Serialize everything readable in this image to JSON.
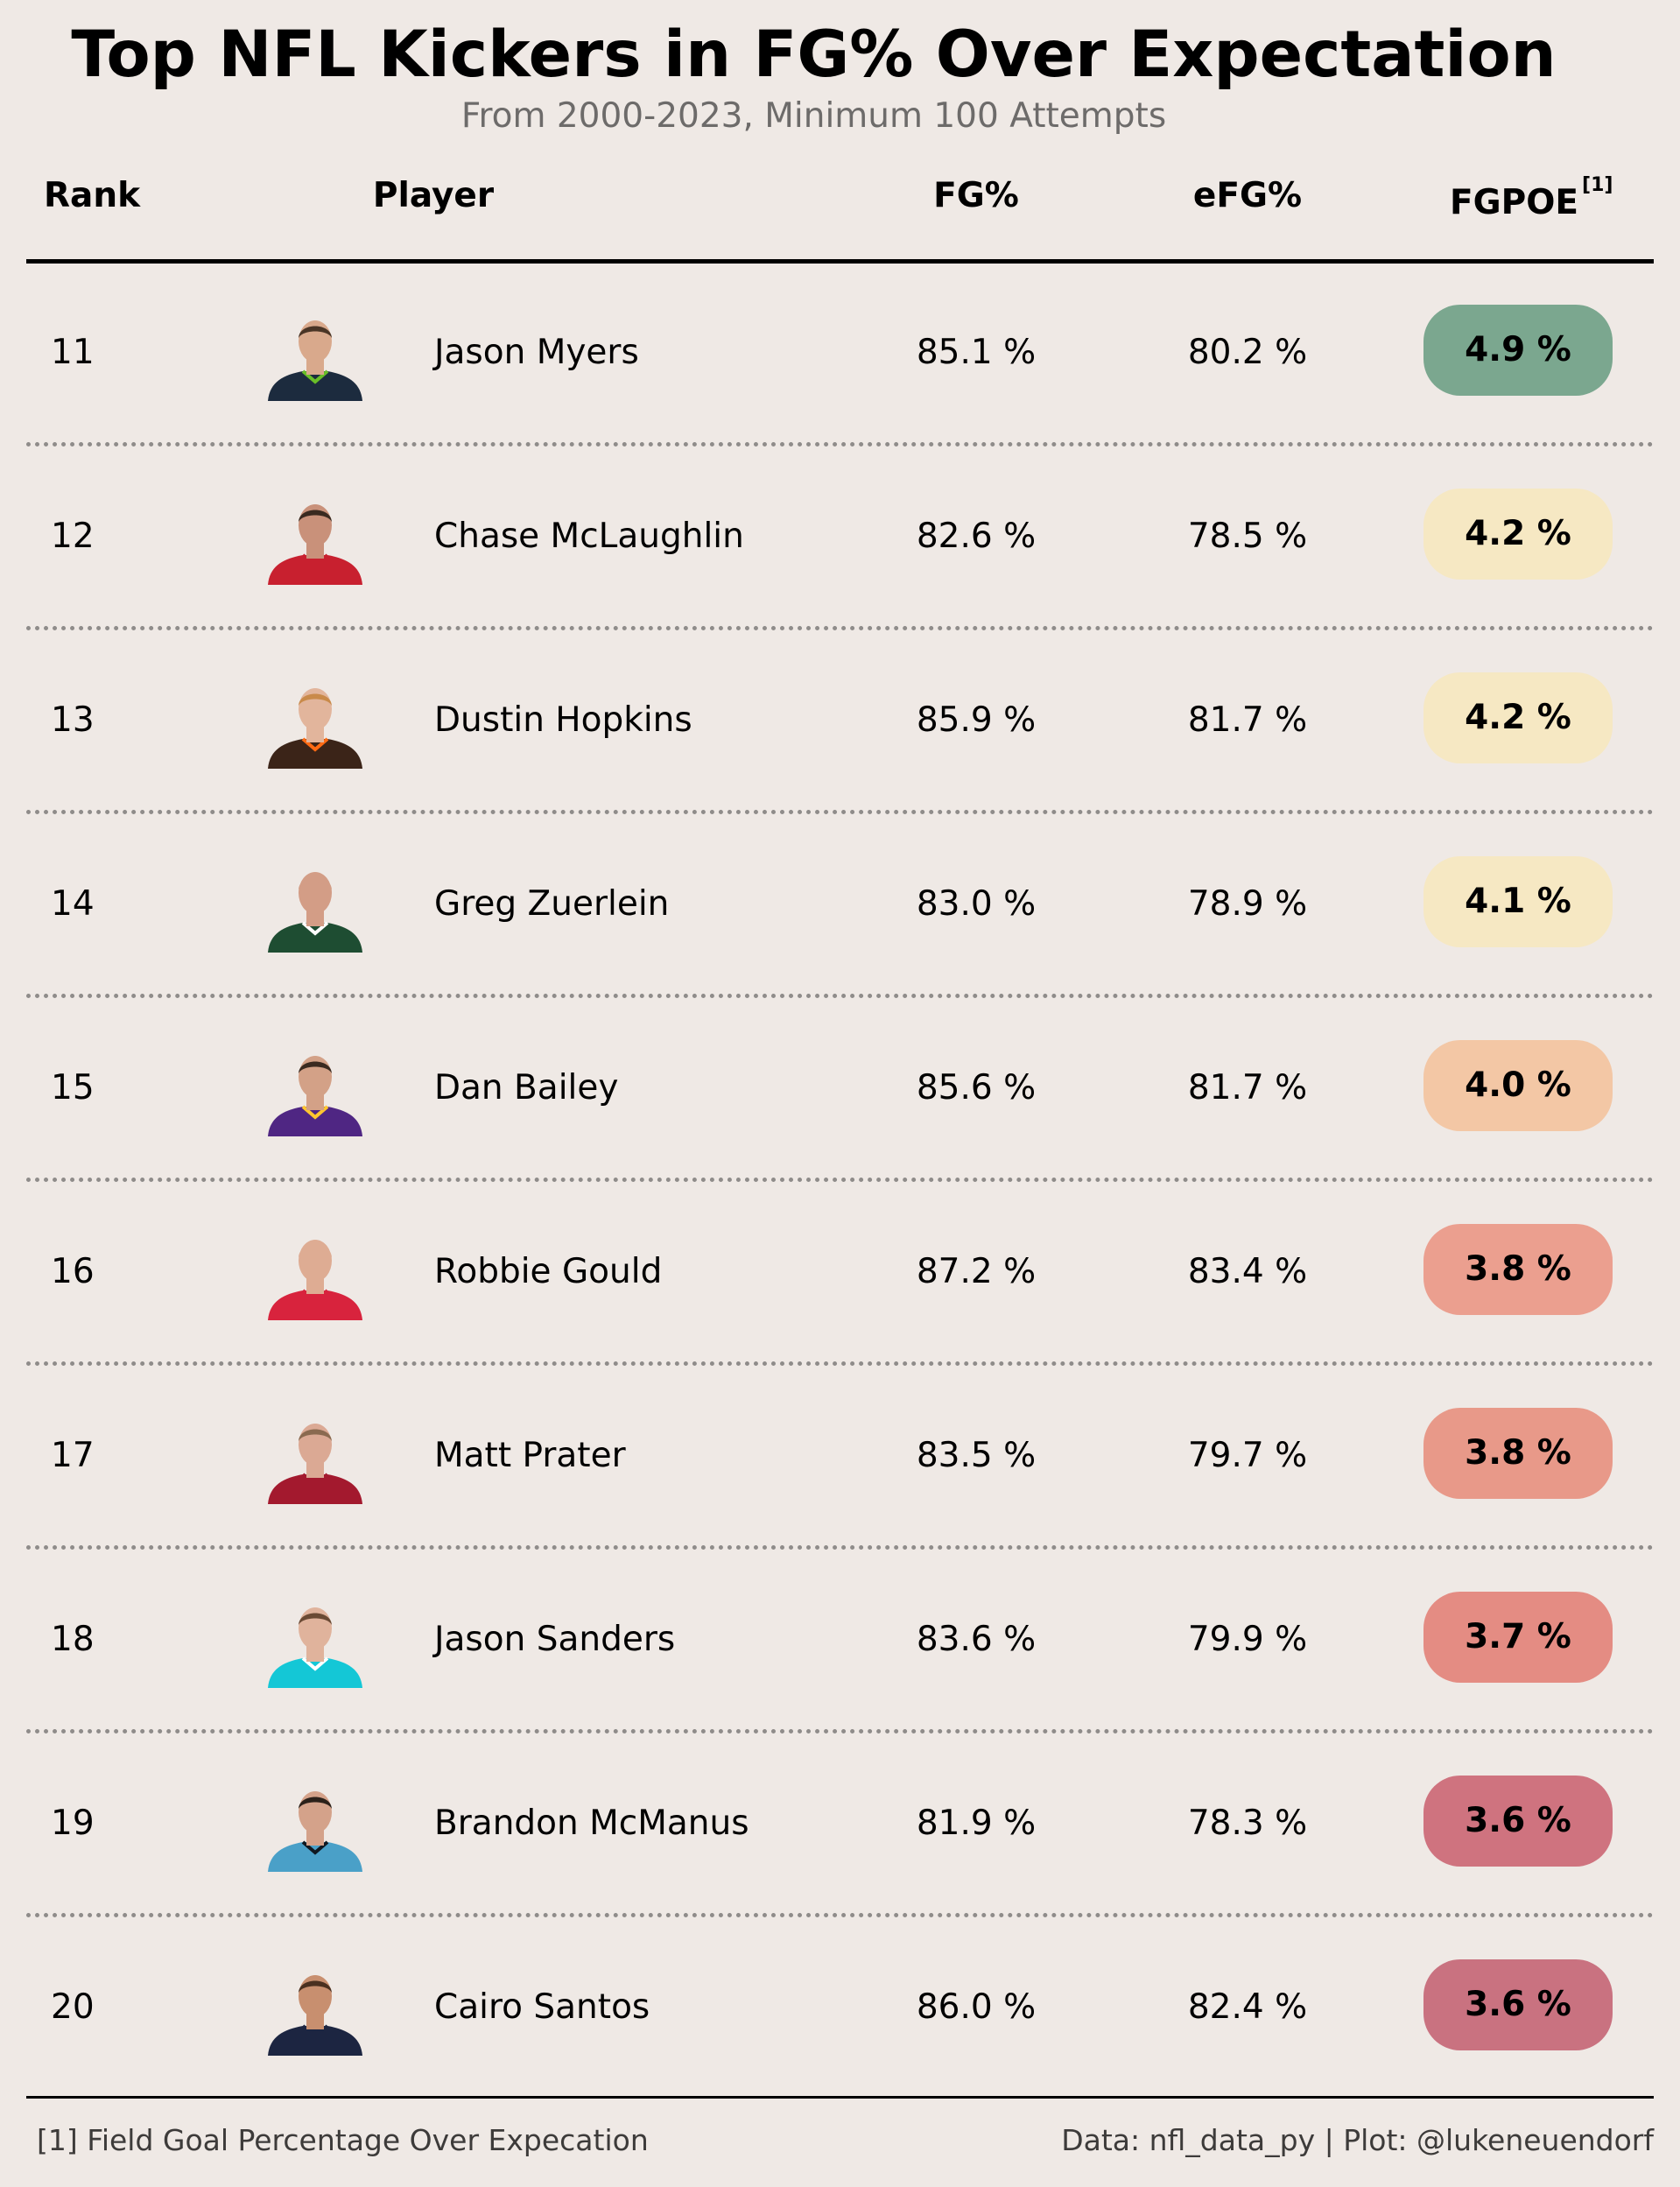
{
  "title": "Top NFL Kickers in FG% Over Expectation",
  "subtitle": "From 2000-2023, Minimum 100 Attempts",
  "columns": {
    "rank": "Rank",
    "player": "Player",
    "fg": "FG%",
    "efg": "eFG%",
    "fgpoe": "FGPOE",
    "fgpoe_note": "[1]"
  },
  "footer": {
    "note": "[1] Field Goal Percentage Over Expecation",
    "credit": "Data: nfl_data_py | Plot: @lukeneuendorf"
  },
  "chart_data": {
    "type": "table",
    "columns": [
      "Rank",
      "Player",
      "FG%",
      "eFG%",
      "FGPOE"
    ],
    "rows": [
      {
        "rank": "11",
        "player": "Jason Myers",
        "fg": "85.1 %",
        "efg": "80.2 %",
        "fgpoe": "4.9 %",
        "fgpoe_value": 4.9,
        "pill_color": "#7ba78f",
        "jersey_color": "#1c2b3e",
        "jersey_accent": "#69be28",
        "skin": "#d9a98c",
        "hair": "#4a3526"
      },
      {
        "rank": "12",
        "player": "Chase McLaughlin",
        "fg": "82.6 %",
        "efg": "78.5 %",
        "fgpoe": "4.2 %",
        "fgpoe_value": 4.2,
        "pill_color": "#f6e8c3",
        "jersey_color": "#c8202f",
        "jersey_accent": "#c8202f",
        "skin": "#c9917a",
        "hair": "#3a2a20"
      },
      {
        "rank": "13",
        "player": "Dustin Hopkins",
        "fg": "85.9 %",
        "efg": "81.7 %",
        "fgpoe": "4.2 %",
        "fgpoe_value": 4.2,
        "pill_color": "#f6e8c3",
        "jersey_color": "#3b2418",
        "jersey_accent": "#ff6a13",
        "skin": "#e2b59c",
        "hair": "#c98a4a"
      },
      {
        "rank": "14",
        "player": "Greg Zuerlein",
        "fg": "83.0 %",
        "efg": "78.9 %",
        "fgpoe": "4.1 %",
        "fgpoe_value": 4.1,
        "pill_color": "#f6e8c3",
        "jersey_color": "#1e4d32",
        "jersey_accent": "#ffffff",
        "skin": "#d39d86",
        "hair": "#d39d86"
      },
      {
        "rank": "15",
        "player": "Dan Bailey",
        "fg": "85.6 %",
        "efg": "81.7 %",
        "fgpoe": "4.0 %",
        "fgpoe_value": 4.0,
        "pill_color": "#f3c7a5",
        "jersey_color": "#4f2683",
        "jersey_accent": "#ffc62f",
        "skin": "#d3a187",
        "hair": "#3a2a20"
      },
      {
        "rank": "16",
        "player": "Robbie Gould",
        "fg": "87.2 %",
        "efg": "83.4 %",
        "fgpoe": "3.8 %",
        "fgpoe_value": 3.8,
        "pill_color": "#eb9f8f",
        "jersey_color": "#d8233d",
        "jersey_accent": "#d8233d",
        "skin": "#deac93",
        "hair": "#deac93"
      },
      {
        "rank": "17",
        "player": "Matt Prater",
        "fg": "83.5 %",
        "efg": "79.7 %",
        "fgpoe": "3.8 %",
        "fgpoe_value": 3.8,
        "pill_color": "#e89989",
        "jersey_color": "#a3192e",
        "jersey_accent": "#a3192e",
        "skin": "#dba994",
        "hair": "#8a6a50"
      },
      {
        "rank": "18",
        "player": "Jason Sanders",
        "fg": "83.6 %",
        "efg": "79.9 %",
        "fgpoe": "3.7 %",
        "fgpoe_value": 3.7,
        "pill_color": "#e48c83",
        "jersey_color": "#14c7d6",
        "jersey_accent": "#ffffff",
        "skin": "#e0b39c",
        "hair": "#6a4a34"
      },
      {
        "rank": "19",
        "player": "Brandon McManus",
        "fg": "81.9 %",
        "efg": "78.3 %",
        "fgpoe": "3.6 %",
        "fgpoe_value": 3.6,
        "pill_color": "#cf737f",
        "jersey_color": "#4aa0c8",
        "jersey_accent": "#101820",
        "skin": "#d4a28a",
        "hair": "#2b211a"
      },
      {
        "rank": "20",
        "player": "Cairo Santos",
        "fg": "86.0 %",
        "efg": "82.4 %",
        "fgpoe": "3.6 %",
        "fgpoe_value": 3.6,
        "pill_color": "#c97280",
        "jersey_color": "#1c2541",
        "jersey_accent": "#1c2541",
        "skin": "#c88f6f",
        "hair": "#4a3020"
      }
    ]
  }
}
